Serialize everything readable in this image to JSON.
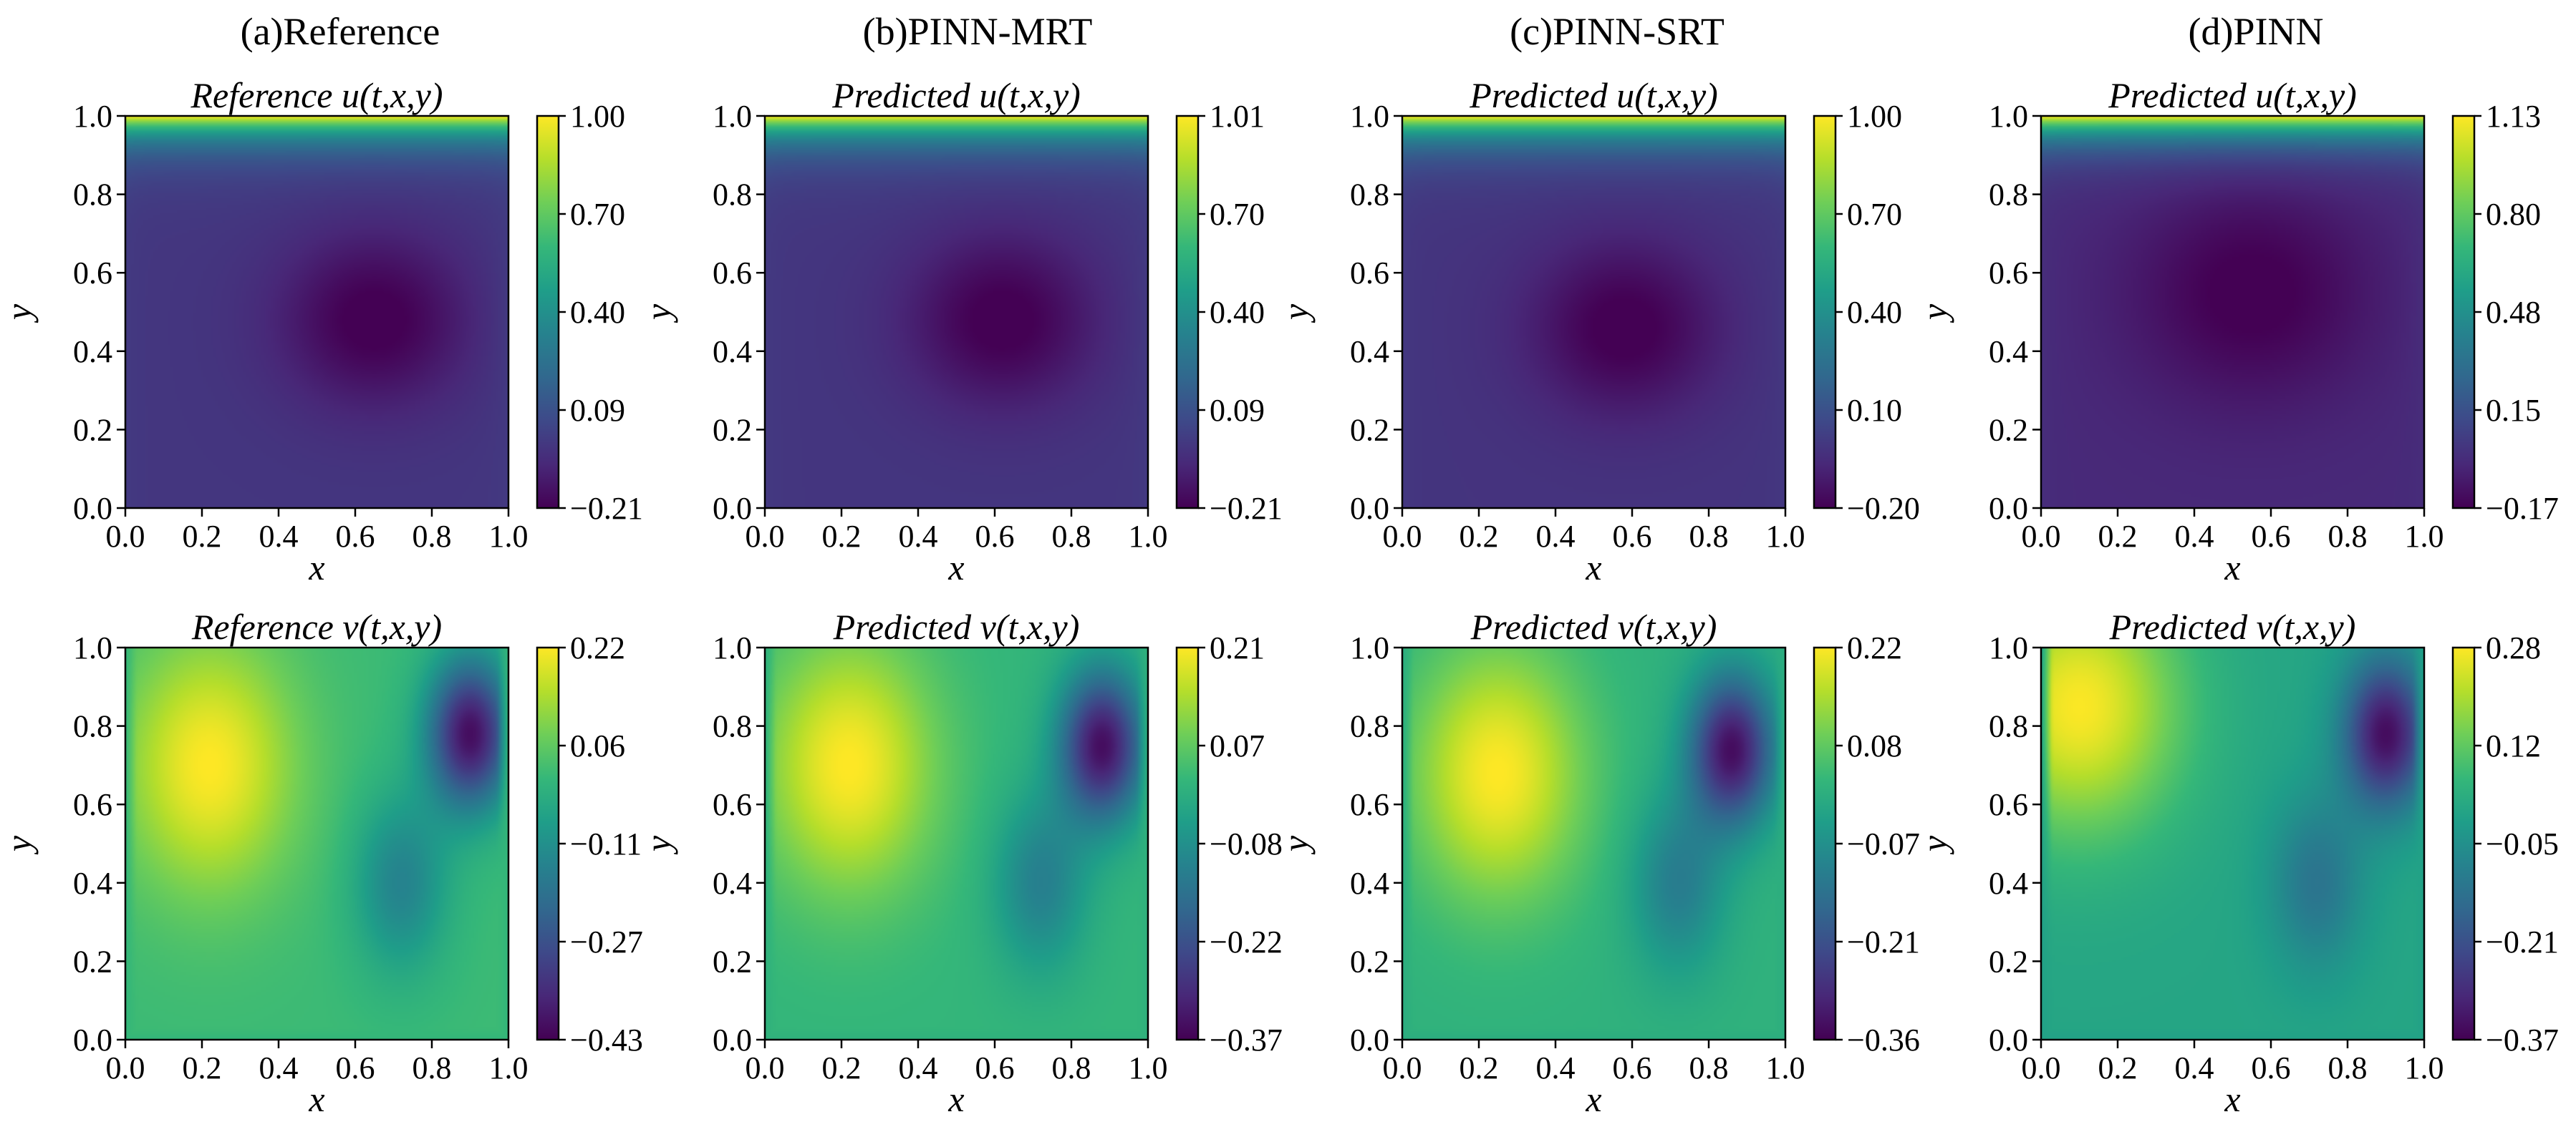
{
  "figure": {
    "column_titles": [
      "(a)Reference",
      "(b)PINN-MRT",
      "(c)PINN-SRT",
      "(d)PINN"
    ]
  },
  "chart_data": [
    {
      "type": "heatmap",
      "field": "u",
      "kind": "ref",
      "model": "Reference",
      "title": "Reference u(t,x,y)",
      "xlabel": "x",
      "ylabel": "y",
      "xlim": [
        0.0,
        1.0
      ],
      "ylim": [
        0.0,
        1.0
      ],
      "x_ticks": [
        "0.0",
        "0.2",
        "0.4",
        "0.6",
        "0.8",
        "1.0"
      ],
      "y_ticks": [
        "0.0",
        "0.2",
        "0.4",
        "0.6",
        "0.8",
        "1.0"
      ],
      "colorbar_range": [
        -0.21,
        1.0
      ],
      "colorbar_ticks": [
        "1.00",
        "0.70",
        "0.40",
        "0.09",
        "−0.21"
      ],
      "colormap": "viridis",
      "features": {
        "vortex_center": [
          0.65,
          0.48
        ],
        "lid_velocity_top": 1.0
      }
    },
    {
      "type": "heatmap",
      "field": "u",
      "kind": "pred",
      "model": "PINN-MRT",
      "title": "Predicted u(t,x,y)",
      "xlabel": "x",
      "ylabel": "y",
      "xlim": [
        0.0,
        1.0
      ],
      "ylim": [
        0.0,
        1.0
      ],
      "x_ticks": [
        "0.0",
        "0.2",
        "0.4",
        "0.6",
        "0.8",
        "1.0"
      ],
      "y_ticks": [
        "0.0",
        "0.2",
        "0.4",
        "0.6",
        "0.8",
        "1.0"
      ],
      "colorbar_range": [
        -0.21,
        1.01
      ],
      "colorbar_ticks": [
        "1.01",
        "0.70",
        "0.40",
        "0.09",
        "−0.21"
      ],
      "colormap": "viridis",
      "features": {
        "vortex_center": [
          0.62,
          0.48
        ],
        "lid_velocity_top": 1.01
      }
    },
    {
      "type": "heatmap",
      "field": "u",
      "kind": "pred",
      "model": "PINN-SRT",
      "title": "Predicted u(t,x,y)",
      "xlabel": "x",
      "ylabel": "y",
      "xlim": [
        0.0,
        1.0
      ],
      "ylim": [
        0.0,
        1.0
      ],
      "x_ticks": [
        "0.0",
        "0.2",
        "0.4",
        "0.6",
        "0.8",
        "1.0"
      ],
      "y_ticks": [
        "0.0",
        "0.2",
        "0.4",
        "0.6",
        "0.8",
        "1.0"
      ],
      "colorbar_range": [
        -0.2,
        1.0
      ],
      "colorbar_ticks": [
        "1.00",
        "0.70",
        "0.40",
        "0.10",
        "−0.20"
      ],
      "colormap": "viridis",
      "features": {
        "vortex_center": [
          0.58,
          0.46
        ],
        "lid_velocity_top": 1.0
      }
    },
    {
      "type": "heatmap",
      "field": "u",
      "kind": "pred",
      "model": "PINN",
      "title": "Predicted u(t,x,y)",
      "xlabel": "x",
      "ylabel": "y",
      "xlim": [
        0.0,
        1.0
      ],
      "ylim": [
        0.0,
        1.0
      ],
      "x_ticks": [
        "0.0",
        "0.2",
        "0.4",
        "0.6",
        "0.8",
        "1.0"
      ],
      "y_ticks": [
        "0.0",
        "0.2",
        "0.4",
        "0.6",
        "0.8",
        "1.0"
      ],
      "colorbar_range": [
        -0.17,
        1.13
      ],
      "colorbar_ticks": [
        "1.13",
        "0.80",
        "0.48",
        "0.15",
        "−0.17"
      ],
      "colormap": "viridis",
      "features": {
        "vortex_center": [
          0.55,
          0.55
        ],
        "lid_velocity_top": 1.13
      }
    },
    {
      "type": "heatmap",
      "field": "v",
      "kind": "ref",
      "model": "Reference",
      "title": "Reference v(t,x,y)",
      "xlabel": "x",
      "ylabel": "y",
      "xlim": [
        0.0,
        1.0
      ],
      "ylim": [
        0.0,
        1.0
      ],
      "x_ticks": [
        "0.0",
        "0.2",
        "0.4",
        "0.6",
        "0.8",
        "1.0"
      ],
      "y_ticks": [
        "0.0",
        "0.2",
        "0.4",
        "0.6",
        "0.8",
        "1.0"
      ],
      "colorbar_range": [
        -0.43,
        0.22
      ],
      "colorbar_ticks": [
        "0.22",
        "0.06",
        "−0.11",
        "−0.27",
        "−0.43"
      ],
      "colormap": "viridis",
      "features": {
        "max_location": [
          0.22,
          0.7
        ],
        "min_location": [
          0.9,
          0.78
        ]
      }
    },
    {
      "type": "heatmap",
      "field": "v",
      "kind": "pred",
      "model": "PINN-MRT",
      "title": "Predicted v(t,x,y)",
      "xlabel": "x",
      "ylabel": "y",
      "xlim": [
        0.0,
        1.0
      ],
      "ylim": [
        0.0,
        1.0
      ],
      "x_ticks": [
        "0.0",
        "0.2",
        "0.4",
        "0.6",
        "0.8",
        "1.0"
      ],
      "y_ticks": [
        "0.0",
        "0.2",
        "0.4",
        "0.6",
        "0.8",
        "1.0"
      ],
      "colorbar_range": [
        -0.37,
        0.21
      ],
      "colorbar_ticks": [
        "0.21",
        "0.07",
        "−0.08",
        "−0.22",
        "−0.37"
      ],
      "colormap": "viridis",
      "features": {
        "max_location": [
          0.22,
          0.7
        ],
        "min_location": [
          0.88,
          0.75
        ]
      }
    },
    {
      "type": "heatmap",
      "field": "v",
      "kind": "pred",
      "model": "PINN-SRT",
      "title": "Predicted v(t,x,y)",
      "xlabel": "x",
      "ylabel": "y",
      "xlim": [
        0.0,
        1.0
      ],
      "ylim": [
        0.0,
        1.0
      ],
      "x_ticks": [
        "0.0",
        "0.2",
        "0.4",
        "0.6",
        "0.8",
        "1.0"
      ],
      "y_ticks": [
        "0.0",
        "0.2",
        "0.4",
        "0.6",
        "0.8",
        "1.0"
      ],
      "colorbar_range": [
        -0.36,
        0.22
      ],
      "colorbar_ticks": [
        "0.22",
        "0.08",
        "−0.07",
        "−0.21",
        "−0.36"
      ],
      "colormap": "viridis",
      "features": {
        "max_location": [
          0.25,
          0.68
        ],
        "min_location": [
          0.86,
          0.74
        ]
      }
    },
    {
      "type": "heatmap",
      "field": "v",
      "kind": "pred",
      "model": "PINN",
      "title": "Predicted v(t,x,y)",
      "xlabel": "x",
      "ylabel": "y",
      "xlim": [
        0.0,
        1.0
      ],
      "ylim": [
        0.0,
        1.0
      ],
      "x_ticks": [
        "0.0",
        "0.2",
        "0.4",
        "0.6",
        "0.8",
        "1.0"
      ],
      "y_ticks": [
        "0.0",
        "0.2",
        "0.4",
        "0.6",
        "0.8",
        "1.0"
      ],
      "colorbar_range": [
        -0.37,
        0.28
      ],
      "colorbar_ticks": [
        "0.28",
        "0.12",
        "−0.05",
        "−0.21",
        "−0.37"
      ],
      "colormap": "viridis",
      "features": {
        "max_location": [
          0.1,
          0.85
        ],
        "min_location": [
          0.9,
          0.78
        ]
      }
    }
  ]
}
